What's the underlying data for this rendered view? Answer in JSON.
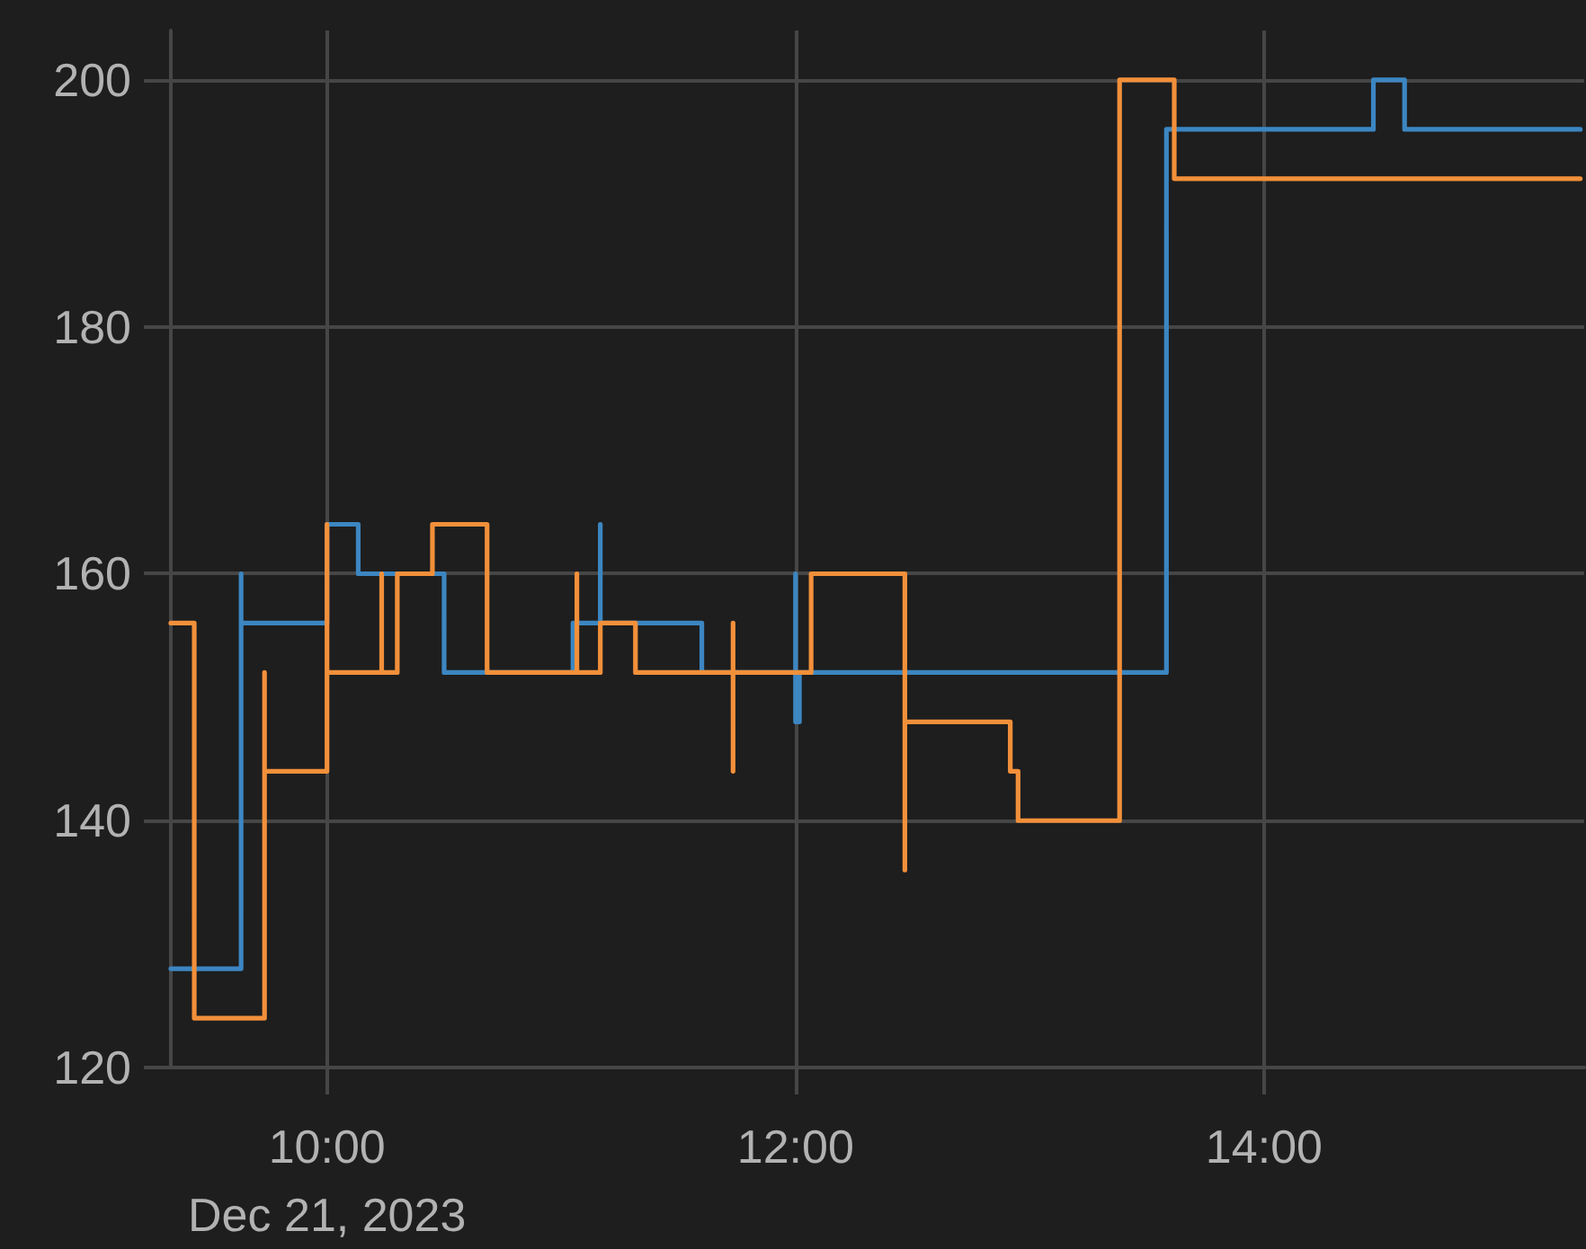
{
  "chart_data": {
    "type": "step",
    "xlim": [
      "2023-12-21T09:20",
      "2023-12-21T15:22"
    ],
    "xticks": [
      {
        "value": "2023-12-21T10:00",
        "label": "10:00\nDec 21, 2023"
      },
      {
        "value": "2023-12-21T12:00",
        "label": "12:00"
      },
      {
        "value": "2023-12-21T14:00",
        "label": "14:00"
      }
    ],
    "ylim": [
      120,
      204
    ],
    "yticks": [
      120,
      140,
      160,
      180,
      200
    ],
    "grid": true,
    "marker": "none",
    "series": [
      {
        "color": "#3c86c2",
        "x": [
          "2023-12-21T09:20",
          "2023-12-21T09:38",
          "2023-12-21T09:38",
          "2023-12-21T10:00",
          "2023-12-21T10:08",
          "2023-12-21T10:30",
          "2023-12-21T11:03",
          "2023-12-21T11:10",
          "2023-12-21T11:10",
          "2023-12-21T11:36",
          "2023-12-21T12:00",
          "2023-12-21T12:00",
          "2023-12-21T12:01",
          "2023-12-21T13:35",
          "2023-12-21T14:28",
          "2023-12-21T14:36",
          "2023-12-21T15:21"
        ],
        "values": [
          128,
          160,
          156,
          164,
          160,
          152,
          156,
          164,
          156,
          152,
          160,
          148,
          152,
          196,
          200,
          196,
          196
        ]
      },
      {
        "color": "#f2903a",
        "x": [
          "2023-12-21T09:20",
          "2023-12-21T09:26",
          "2023-12-21T09:44",
          "2023-12-21T09:44",
          "2023-12-21T10:00",
          "2023-12-21T10:00",
          "2023-12-21T10:14",
          "2023-12-21T10:14",
          "2023-12-21T10:18",
          "2023-12-21T10:27",
          "2023-12-21T10:41",
          "2023-12-21T11:04",
          "2023-12-21T11:04",
          "2023-12-21T11:10",
          "2023-12-21T11:19",
          "2023-12-21T11:44",
          "2023-12-21T11:44",
          "2023-12-21T11:44",
          "2023-12-21T12:04",
          "2023-12-21T12:28",
          "2023-12-21T12:28",
          "2023-12-21T12:55",
          "2023-12-21T12:57",
          "2023-12-21T13:23",
          "2023-12-21T13:37",
          "2023-12-21T15:21"
        ],
        "values": [
          156,
          124,
          152,
          144,
          164,
          152,
          160,
          152,
          160,
          164,
          152,
          160,
          152,
          156,
          152,
          156,
          144,
          152,
          160,
          136,
          148,
          144,
          140,
          200,
          192,
          192
        ]
      }
    ]
  }
}
